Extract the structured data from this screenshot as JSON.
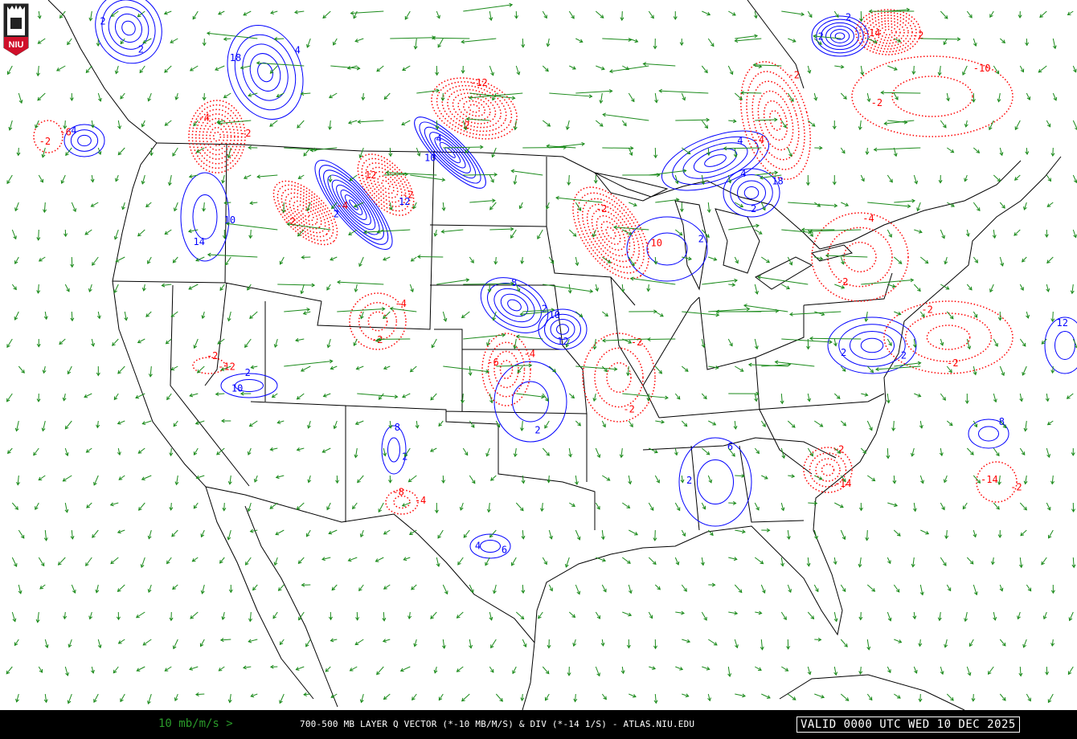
{
  "header": {
    "logo_text": "NIU"
  },
  "footer": {
    "scale_label": "10 mb/m/s >",
    "title": "700-500 MB LAYER Q VECTOR (*-10 MB/M/S) & DIV (*-14 1/S) - ATLAS.NIU.EDU",
    "valid_time": "VALID 0000 UTC WED 10 DEC 2025"
  },
  "map": {
    "fields": [
      "Q vector",
      "divergence"
    ],
    "colors": {
      "positive_contour": "#0000ff",
      "negative_contour": "#ff0000",
      "vectors": "#1a8a1a",
      "borders": "#000000",
      "background": "#ffffff"
    },
    "blue_labels": [
      "12",
      "10",
      "8",
      "2",
      "2",
      "4",
      "2",
      "18",
      "18",
      "12",
      "12",
      "10",
      "10",
      "8",
      "6",
      "2",
      "8",
      "2",
      "4",
      "2",
      "2",
      "4",
      "2",
      "2",
      "2",
      "4",
      "2",
      "4",
      "2",
      "10",
      "2",
      "14",
      "2",
      "2",
      "4",
      "6"
    ],
    "red_labels": [
      "-2",
      "-2",
      "-12",
      "-10",
      "-14",
      "-2",
      "-14",
      "-12",
      "-4",
      "-2",
      "-2",
      "-4",
      "-2",
      "-4",
      "-12",
      "-14",
      "-10",
      "-2",
      "-4",
      "-4",
      "-2",
      "-2",
      "-2",
      "-4",
      "-2",
      "-2",
      "-6",
      "-4",
      "-2",
      "-8",
      "-6",
      "-2",
      "-2",
      "-2",
      "-2",
      "-2"
    ]
  }
}
